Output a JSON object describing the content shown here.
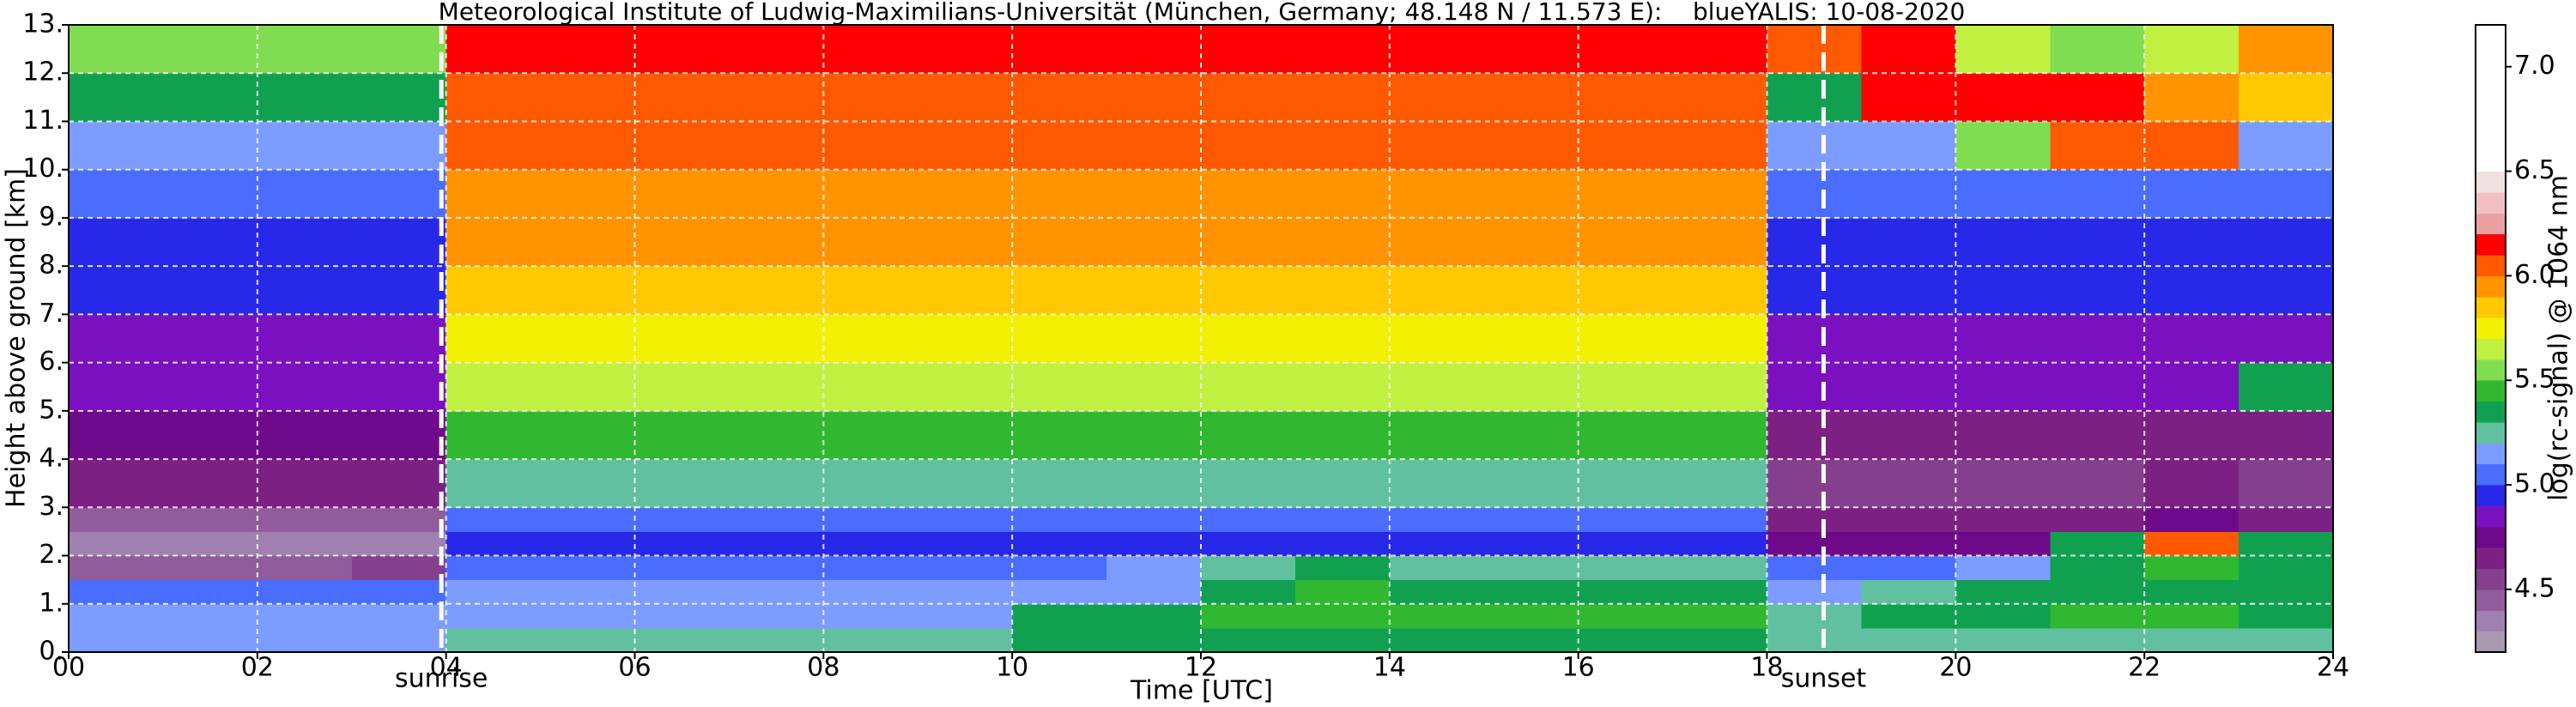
{
  "chart_data": {
    "type": "heatmap",
    "title": "Meteorological Institute of Ludwig-Maximilians-Universität (München, Germany; 48.148 N / 11.573 E):    blueYALIS: 10-08-2020",
    "xlabel": "Time [UTC]",
    "ylabel": "Height above ground [km]",
    "xlim": [
      0,
      24
    ],
    "ylim": [
      0,
      13
    ],
    "xticks": [
      {
        "value": 0,
        "label": "00"
      },
      {
        "value": 2,
        "label": "02"
      },
      {
        "value": 4,
        "label": "04"
      },
      {
        "value": 6,
        "label": "06"
      },
      {
        "value": 8,
        "label": "08"
      },
      10,
      12,
      14,
      16,
      18,
      20,
      22,
      24
    ],
    "yticks": [
      {
        "value": 0,
        "label": "0."
      },
      {
        "value": 1,
        "label": "1."
      },
      {
        "value": 2,
        "label": "2."
      },
      {
        "value": 3,
        "label": "3."
      },
      {
        "value": 4,
        "label": "4."
      },
      {
        "value": 5,
        "label": "5."
      },
      {
        "value": 6,
        "label": "6."
      },
      {
        "value": 7,
        "label": "7."
      },
      {
        "value": 8,
        "label": "8."
      },
      {
        "value": 9,
        "label": "9."
      },
      {
        "value": 10,
        "label": "10."
      },
      {
        "value": 11,
        "label": "11."
      },
      {
        "value": 12,
        "label": "12."
      },
      {
        "value": 13,
        "label": "13."
      }
    ],
    "grid": true,
    "xbins": [
      0,
      1,
      2,
      3,
      4,
      5,
      6,
      7,
      8,
      9,
      10,
      11,
      12,
      13,
      14,
      15,
      16,
      17,
      18,
      19,
      20,
      21,
      22,
      23,
      24
    ],
    "ybins": [
      0,
      0.5,
      1,
      1.5,
      2,
      2.5,
      3,
      4,
      5,
      6,
      7,
      8,
      9,
      10,
      11,
      12,
      13
    ],
    "z": [
      [
        5.1,
        5.1,
        5.1,
        5.1,
        5.2,
        5.2,
        5.2,
        5.2,
        5.2,
        5.2,
        5.3,
        5.3,
        5.3,
        5.3,
        5.3,
        5.3,
        5.3,
        5.3,
        5.2,
        5.2,
        5.2,
        5.2,
        5.2,
        5.2
      ],
      [
        5.1,
        5.1,
        5.1,
        5.1,
        5.1,
        5.1,
        5.1,
        5.1,
        5.1,
        5.1,
        5.3,
        5.3,
        5.4,
        5.4,
        5.4,
        5.4,
        5.4,
        5.4,
        5.2,
        5.3,
        5.3,
        5.4,
        5.4,
        5.3
      ],
      [
        5.0,
        5.0,
        5.0,
        5.0,
        5.1,
        5.1,
        5.1,
        5.1,
        5.1,
        5.1,
        5.1,
        5.1,
        5.3,
        5.4,
        5.3,
        5.3,
        5.3,
        5.3,
        5.1,
        5.2,
        5.3,
        5.3,
        5.3,
        5.3
      ],
      [
        4.4,
        4.4,
        4.4,
        4.5,
        5.0,
        5.0,
        5.0,
        5.0,
        5.0,
        5.0,
        5.0,
        5.1,
        5.2,
        5.3,
        5.2,
        5.2,
        5.2,
        5.2,
        5.0,
        5.0,
        5.1,
        5.3,
        5.4,
        5.3
      ],
      [
        4.3,
        4.3,
        4.3,
        4.3,
        4.9,
        4.9,
        4.9,
        4.9,
        4.9,
        4.9,
        4.9,
        4.9,
        4.9,
        4.9,
        4.9,
        4.9,
        4.9,
        4.9,
        4.7,
        4.7,
        4.7,
        5.3,
        6.0,
        5.3
      ],
      [
        4.4,
        4.4,
        4.4,
        4.4,
        5.0,
        5.0,
        5.0,
        5.0,
        5.0,
        5.0,
        5.0,
        5.0,
        5.0,
        5.0,
        5.0,
        5.0,
        5.0,
        5.0,
        4.6,
        4.6,
        4.6,
        4.6,
        4.7,
        4.6
      ],
      [
        4.6,
        4.6,
        4.6,
        4.6,
        5.2,
        5.2,
        5.2,
        5.2,
        5.2,
        5.2,
        5.2,
        5.2,
        5.2,
        5.2,
        5.2,
        5.2,
        5.2,
        5.2,
        4.5,
        4.5,
        4.5,
        4.5,
        4.6,
        4.5
      ],
      [
        4.7,
        4.7,
        4.7,
        4.7,
        5.4,
        5.4,
        5.4,
        5.4,
        5.4,
        5.4,
        5.4,
        5.4,
        5.4,
        5.4,
        5.4,
        5.4,
        5.4,
        5.4,
        4.6,
        4.6,
        4.6,
        4.6,
        4.6,
        4.6
      ],
      [
        4.8,
        4.8,
        4.8,
        4.8,
        5.6,
        5.6,
        5.6,
        5.6,
        5.6,
        5.6,
        5.6,
        5.6,
        5.6,
        5.6,
        5.6,
        5.6,
        5.6,
        5.6,
        4.8,
        4.8,
        4.8,
        4.8,
        4.8,
        5.3
      ],
      [
        4.85,
        4.85,
        4.85,
        4.85,
        5.7,
        5.7,
        5.7,
        5.7,
        5.7,
        5.7,
        5.7,
        5.7,
        5.7,
        5.7,
        5.7,
        5.7,
        5.7,
        5.7,
        4.85,
        4.85,
        4.85,
        4.85,
        4.85,
        4.85
      ],
      [
        4.9,
        4.9,
        4.9,
        4.9,
        5.8,
        5.8,
        5.8,
        5.8,
        5.8,
        5.8,
        5.8,
        5.8,
        5.8,
        5.8,
        5.8,
        5.8,
        5.8,
        5.8,
        4.9,
        4.9,
        4.9,
        4.9,
        4.9,
        4.9
      ],
      [
        4.95,
        4.95,
        4.95,
        4.95,
        5.9,
        5.9,
        5.9,
        5.9,
        5.9,
        5.9,
        5.9,
        5.9,
        5.9,
        5.9,
        5.9,
        5.9,
        5.9,
        5.9,
        4.95,
        4.95,
        4.95,
        4.95,
        4.95,
        4.95
      ],
      [
        5.0,
        5.0,
        5.0,
        5.0,
        5.95,
        5.95,
        5.95,
        5.95,
        5.95,
        5.95,
        5.95,
        5.95,
        5.95,
        5.95,
        5.95,
        5.95,
        5.95,
        5.95,
        5.0,
        5.0,
        5.0,
        5.0,
        5.0,
        5.0
      ],
      [
        5.1,
        5.1,
        5.1,
        5.1,
        6.0,
        6.0,
        6.0,
        6.0,
        6.0,
        6.0,
        6.0,
        6.0,
        6.0,
        6.0,
        6.0,
        6.0,
        6.0,
        6.0,
        5.1,
        5.1,
        5.5,
        6.0,
        6.0,
        5.1
      ],
      [
        5.3,
        5.3,
        5.3,
        5.3,
        6.05,
        6.05,
        6.05,
        6.05,
        6.05,
        6.05,
        6.05,
        6.05,
        6.05,
        6.05,
        6.05,
        6.05,
        6.05,
        6.05,
        5.3,
        6.1,
        6.1,
        6.1,
        5.9,
        5.8
      ],
      [
        5.5,
        5.5,
        5.5,
        5.5,
        6.1,
        6.1,
        6.1,
        6.1,
        6.1,
        6.1,
        6.1,
        6.1,
        6.1,
        6.1,
        6.1,
        6.1,
        6.1,
        6.1,
        6.0,
        6.1,
        5.6,
        5.5,
        5.6,
        5.9
      ]
    ],
    "colorbar": {
      "label": "log(rc-signal) @ 1064 nm",
      "lim": [
        4.2,
        7.2
      ],
      "ticks": [
        4.5,
        {
          "value": 5,
          "label": "5.0"
        },
        5.5,
        {
          "value": 6,
          "label": "6.0"
        },
        6.5,
        {
          "value": 7,
          "label": "7.0"
        }
      ],
      "bounds": [
        4.2,
        4.3,
        4.4,
        4.5,
        4.6,
        4.7,
        4.8,
        4.9,
        5.0,
        5.1,
        5.2,
        5.3,
        5.4,
        5.5,
        5.6,
        5.7,
        5.8,
        5.9,
        6.0,
        6.1,
        6.2,
        6.3,
        6.4,
        6.5,
        7.2
      ],
      "colors": [
        "#a898b0",
        "#a080b0",
        "#905c9c",
        "#84408c",
        "#7c2084",
        "#6e0a8a",
        "#7a10c0",
        "#2828e8",
        "#4a6cff",
        "#7c9cff",
        "#60c0a0",
        "#10a050",
        "#30b830",
        "#80dc50",
        "#c0f040",
        "#f0f000",
        "#ffc800",
        "#ff9400",
        "#ff5a00",
        "#ff0000",
        "#e8a0a0",
        "#f0c0c0",
        "#f0e0e0",
        "#ffffff"
      ]
    },
    "annotations": [
      {
        "text": "sunrise",
        "x": 3.95
      },
      {
        "text": "sunset",
        "x": 18.6
      }
    ]
  }
}
